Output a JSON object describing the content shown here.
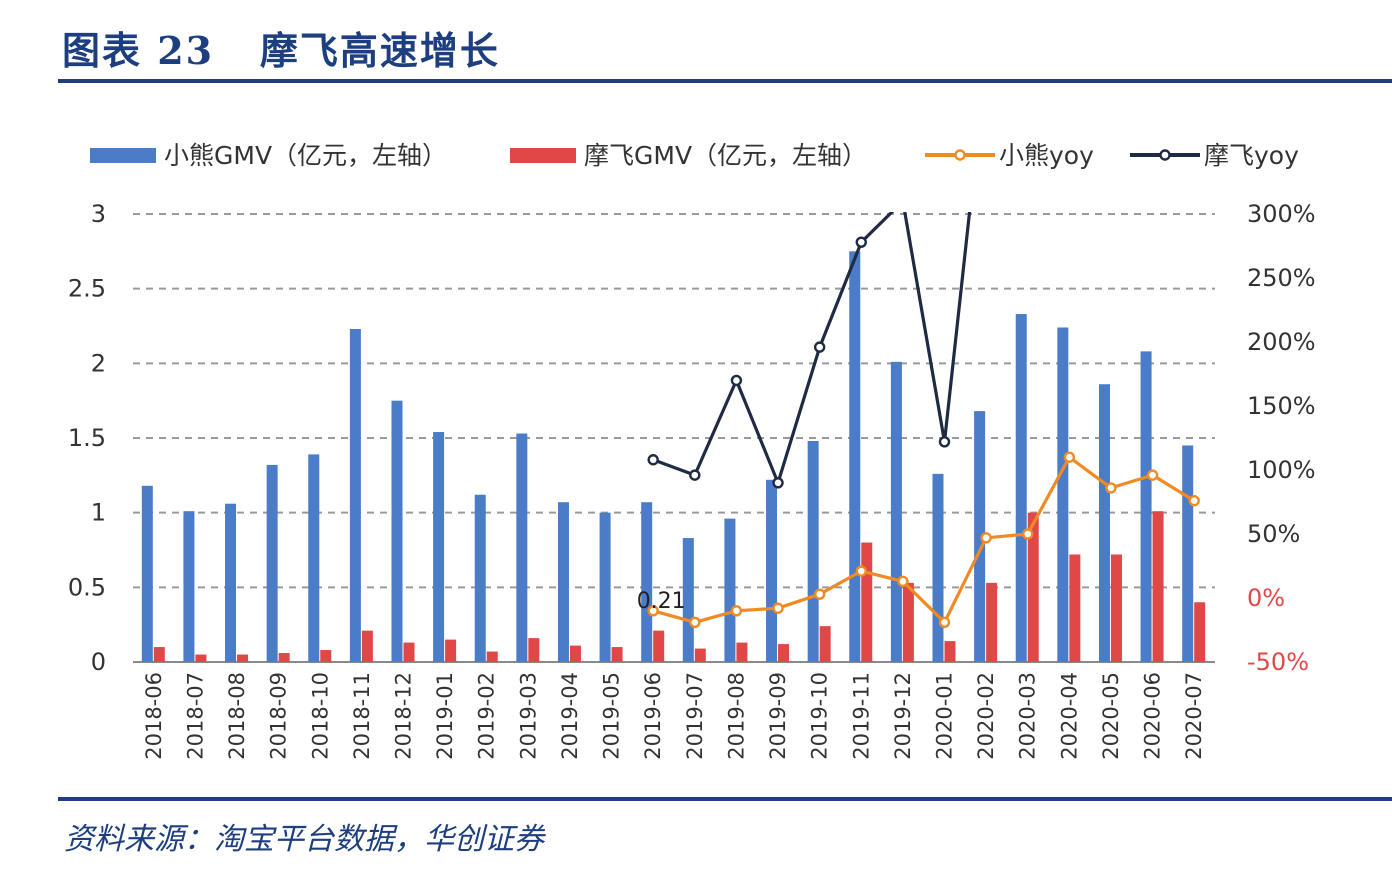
{
  "header": {
    "figure_no": "图表 23",
    "title": "摩飞高速增长"
  },
  "footer": {
    "source": "资料来源：淘宝平台数据，华创证券"
  },
  "chart_data": {
    "type": "bar+line",
    "title": "摩飞高速增长",
    "categories": [
      "2018-06",
      "2018-07",
      "2018-08",
      "2018-09",
      "2018-10",
      "2018-11",
      "2018-12",
      "2019-01",
      "2019-02",
      "2019-03",
      "2019-04",
      "2019-05",
      "2019-06",
      "2019-07",
      "2019-08",
      "2019-09",
      "2019-10",
      "2019-11",
      "2019-12",
      "2020-01",
      "2020-02",
      "2020-03",
      "2020-04",
      "2020-05",
      "2020-06",
      "2020-07"
    ],
    "y_left": {
      "ticks": [
        "0",
        "0.5",
        "1",
        "1.5",
        "2",
        "2.5",
        "3"
      ],
      "ylim": [
        0,
        3
      ]
    },
    "y_right": {
      "ticks": [
        "-50%",
        "0%",
        "50%",
        "100%",
        "150%",
        "200%",
        "250%",
        "300%"
      ],
      "ylim": [
        -50,
        300
      ],
      "unit": "%"
    },
    "grid": "dashed horizontal",
    "legend_position": "top",
    "series": [
      {
        "name": "小熊GMV（亿元，左轴）",
        "type": "bar",
        "axis": "left",
        "color": "#4a7cc7",
        "values": [
          1.18,
          1.01,
          1.06,
          1.32,
          1.39,
          2.23,
          1.75,
          1.54,
          1.12,
          1.53,
          1.07,
          1.0,
          1.07,
          0.83,
          0.96,
          1.22,
          1.48,
          2.75,
          2.01,
          1.26,
          1.68,
          2.33,
          2.24,
          1.86,
          2.08,
          1.45
        ]
      },
      {
        "name": "摩飞GMV（亿元，左轴）",
        "type": "bar",
        "axis": "left",
        "color": "#e04848",
        "values": [
          0.1,
          0.05,
          0.05,
          0.06,
          0.08,
          0.21,
          0.13,
          0.15,
          0.07,
          0.16,
          0.11,
          0.1,
          0.21,
          0.09,
          0.13,
          0.12,
          0.24,
          0.8,
          0.53,
          0.14,
          0.53,
          1.0,
          0.72,
          0.72,
          1.01,
          0.4
        ]
      },
      {
        "name": "小熊yoy",
        "type": "line",
        "axis": "right",
        "color": "#f08a24",
        "values": [
          null,
          null,
          null,
          null,
          null,
          null,
          null,
          null,
          null,
          null,
          null,
          null,
          -10,
          -19,
          -10,
          -8,
          3,
          21,
          13,
          -19,
          47,
          50,
          110,
          86,
          96,
          76
        ]
      },
      {
        "name": "摩飞yoy",
        "type": "line",
        "axis": "right",
        "color": "#1f2a44",
        "values": [
          null,
          null,
          null,
          null,
          null,
          null,
          null,
          null,
          null,
          null,
          null,
          null,
          108,
          96,
          170,
          90,
          196,
          278,
          310,
          122,
          420,
          null,
          null,
          null,
          null,
          null
        ]
      }
    ],
    "annotations": [
      {
        "text": "0.21",
        "category": "2019-06"
      }
    ]
  }
}
